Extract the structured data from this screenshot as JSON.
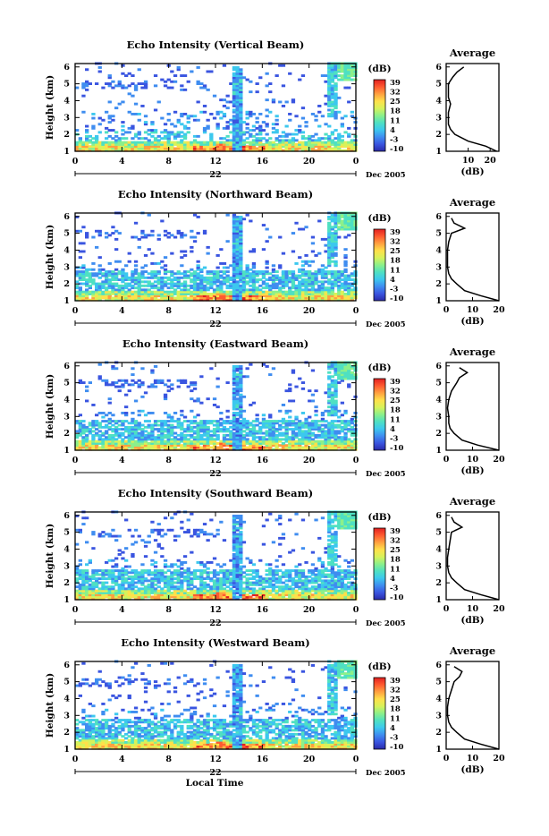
{
  "figure": {
    "x_axis_label": "Local Time",
    "date_label": "Dec 2005",
    "day_label": "22",
    "colorbar_unit": "(dB)",
    "colorbar_ticks": [
      "39",
      "32",
      "25",
      "18",
      "11",
      "4",
      "-3",
      "-10"
    ],
    "profile_title": "Average",
    "profile_xlabel": "(dB)",
    "colormap": [
      "#2a2aa8",
      "#3a55e0",
      "#3f8df0",
      "#3cc8ee",
      "#4fe0c2",
      "#8cf08a",
      "#d8f25a",
      "#ffe04a",
      "#ffa040",
      "#ff5a30",
      "#e02020"
    ]
  },
  "chart_data": [
    {
      "type": "heatmap",
      "title": "Echo Intensity (Vertical Beam)",
      "ylabel": "Height (km)",
      "x_ticks": [
        "0",
        "4",
        "8",
        "12",
        "16",
        "20",
        "0"
      ],
      "y_ticks": [
        "1",
        "2",
        "3",
        "4",
        "5",
        "6"
      ],
      "xlim": [
        0,
        24
      ],
      "ylim": [
        1,
        6.2
      ],
      "clim": [
        -10,
        39
      ],
      "profile": {
        "type": "line",
        "title": "Average",
        "x_ticks": [
          "10",
          "20"
        ],
        "xlim": [
          0,
          24
        ],
        "y_ticks": [
          "1",
          "2",
          "3",
          "4",
          "5",
          "6"
        ],
        "height_km": [
          1.0,
          1.3,
          1.6,
          2.0,
          2.3,
          2.6,
          3.0,
          3.3,
          3.8,
          4.2,
          4.6,
          5.0,
          5.4,
          5.7,
          6.0
        ],
        "db": [
          23,
          18,
          10,
          4,
          2,
          1,
          1,
          1,
          2,
          1,
          1,
          1,
          3,
          5,
          8
        ]
      }
    },
    {
      "type": "heatmap",
      "title": "Echo Intensity (Northward Beam)",
      "ylabel": "Height (km)",
      "x_ticks": [
        "0",
        "4",
        "8",
        "12",
        "16",
        "20",
        "0"
      ],
      "y_ticks": [
        "1",
        "2",
        "3",
        "4",
        "5",
        "6"
      ],
      "xlim": [
        0,
        24
      ],
      "ylim": [
        1,
        6.2
      ],
      "clim": [
        -10,
        39
      ],
      "profile": {
        "type": "line",
        "title": "Average",
        "x_ticks": [
          "0",
          "10",
          "20"
        ],
        "xlim": [
          0,
          20
        ],
        "y_ticks": [
          "1",
          "2",
          "3",
          "4",
          "5",
          "6"
        ],
        "height_km": [
          1.0,
          1.3,
          1.6,
          2.0,
          2.3,
          2.6,
          3.0,
          3.5,
          4.0,
          4.5,
          5.0,
          5.3,
          5.6,
          5.9
        ],
        "db": [
          20,
          13,
          7,
          4,
          2,
          1,
          0.5,
          0.5,
          0.5,
          1,
          2,
          7,
          3,
          2
        ]
      }
    },
    {
      "type": "heatmap",
      "title": "Echo Intensity (Eastward Beam)",
      "ylabel": "Height (km)",
      "x_ticks": [
        "0",
        "4",
        "8",
        "12",
        "16",
        "20",
        "0"
      ],
      "y_ticks": [
        "1",
        "2",
        "3",
        "4",
        "5",
        "6"
      ],
      "xlim": [
        0,
        24
      ],
      "ylim": [
        1,
        6.2
      ],
      "clim": [
        -10,
        39
      ],
      "profile": {
        "type": "line",
        "title": "Average",
        "x_ticks": [
          "0",
          "10",
          "20"
        ],
        "xlim": [
          0,
          20
        ],
        "y_ticks": [
          "1",
          "2",
          "3",
          "4",
          "5",
          "6"
        ],
        "height_km": [
          1.0,
          1.3,
          1.6,
          2.0,
          2.3,
          2.6,
          3.0,
          3.5,
          4.0,
          4.5,
          5.0,
          5.3,
          5.6,
          5.9
        ],
        "db": [
          20,
          12,
          6,
          3,
          1.5,
          1,
          1,
          0.5,
          1,
          2,
          4,
          5,
          8,
          5
        ]
      }
    },
    {
      "type": "heatmap",
      "title": "Echo Intensity (Southward Beam)",
      "ylabel": "Height (km)",
      "x_ticks": [
        "0",
        "4",
        "8",
        "12",
        "16",
        "20",
        "0"
      ],
      "y_ticks": [
        "1",
        "2",
        "3",
        "4",
        "5",
        "6"
      ],
      "xlim": [
        0,
        24
      ],
      "ylim": [
        1,
        6.2
      ],
      "clim": [
        -10,
        39
      ],
      "profile": {
        "type": "line",
        "title": "Average",
        "x_ticks": [
          "0",
          "10",
          "20"
        ],
        "xlim": [
          0,
          20
        ],
        "y_ticks": [
          "1",
          "2",
          "3",
          "4",
          "5",
          "6"
        ],
        "height_km": [
          1.0,
          1.3,
          1.6,
          2.0,
          2.3,
          2.6,
          3.0,
          3.5,
          4.0,
          4.5,
          5.0,
          5.3,
          5.6,
          5.9
        ],
        "db": [
          20,
          13,
          7,
          4,
          2,
          1,
          0.5,
          0.5,
          1,
          1.5,
          2,
          6,
          3,
          2
        ]
      }
    },
    {
      "type": "heatmap",
      "title": "Echo Intensity (Westward Beam)",
      "ylabel": "Height (km)",
      "x_ticks": [
        "0",
        "4",
        "8",
        "12",
        "16",
        "20",
        "0"
      ],
      "y_ticks": [
        "1",
        "2",
        "3",
        "4",
        "5",
        "6"
      ],
      "xlim": [
        0,
        24
      ],
      "ylim": [
        1,
        6.2
      ],
      "clim": [
        -10,
        39
      ],
      "profile": {
        "type": "line",
        "title": "Average",
        "x_ticks": [
          "0",
          "10",
          "20"
        ],
        "xlim": [
          0,
          20
        ],
        "y_ticks": [
          "1",
          "2",
          "3",
          "4",
          "5",
          "6"
        ],
        "height_km": [
          1.0,
          1.3,
          1.6,
          2.0,
          2.3,
          2.6,
          3.0,
          3.5,
          4.0,
          4.5,
          5.0,
          5.3,
          5.6,
          5.9
        ],
        "db": [
          20,
          13,
          7,
          4,
          2,
          1,
          0.5,
          0.5,
          1,
          2,
          3,
          5,
          6,
          3
        ]
      }
    }
  ]
}
